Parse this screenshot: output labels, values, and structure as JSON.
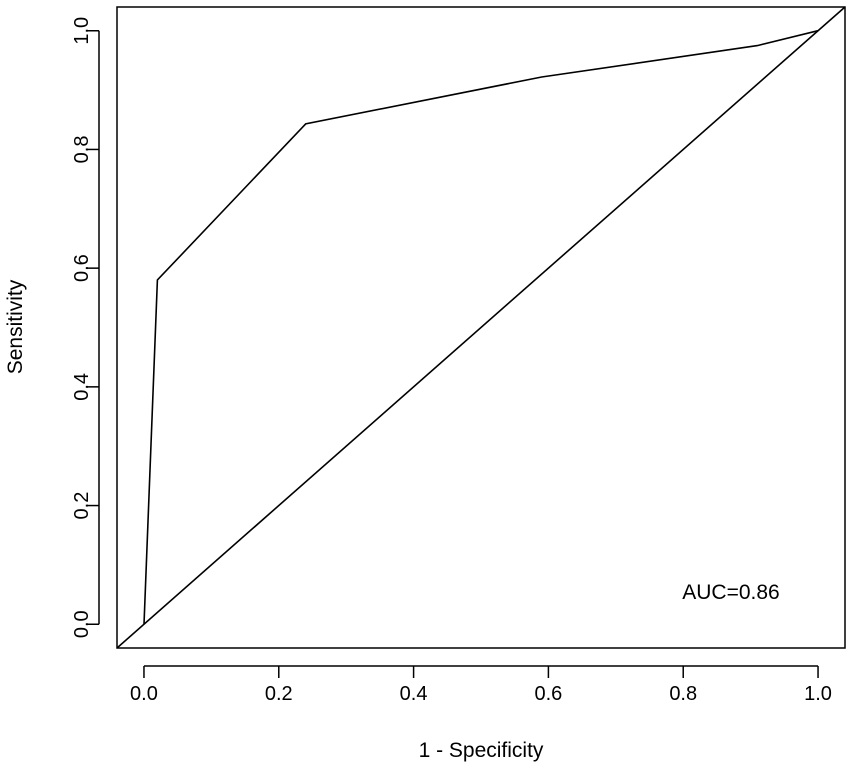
{
  "chart_data": {
    "type": "line",
    "xlabel": "1 - Specificity",
    "ylabel": "Sensitivity",
    "xlim": [
      -0.04,
      1.04
    ],
    "ylim": [
      -0.04,
      1.04
    ],
    "x_ticks": [
      0.0,
      0.2,
      0.4,
      0.6,
      0.8,
      1.0
    ],
    "x_tick_labels": [
      "0.0",
      "0.2",
      "0.4",
      "0.6",
      "0.8",
      "1.0"
    ],
    "y_ticks": [
      0.0,
      0.2,
      0.4,
      0.6,
      0.8,
      1.0
    ],
    "y_tick_labels": [
      "0.0",
      "0.2",
      "0.4",
      "0.6",
      "0.8",
      "1.0"
    ],
    "grid": false,
    "series": [
      {
        "x": [
          0.0,
          0.02,
          0.24,
          0.59,
          0.91,
          1.0
        ],
        "y": [
          0.0,
          0.58,
          0.843,
          0.922,
          0.975,
          1.0
        ]
      }
    ],
    "reference_line": {
      "x": [
        -0.04,
        1.04
      ],
      "y": [
        -0.04,
        1.04
      ]
    },
    "annotation": "AUC=0.86"
  }
}
